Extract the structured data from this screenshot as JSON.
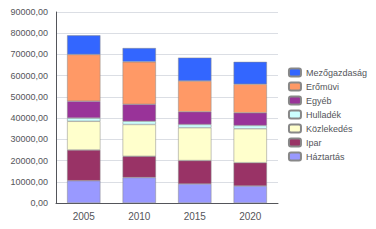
{
  "chart_data": {
    "type": "bar",
    "stacked": true,
    "categories": [
      "2005",
      "2010",
      "2015",
      "2020"
    ],
    "series": [
      {
        "name": "Háztartás",
        "color": "#9999ff",
        "values": [
          10500,
          12000,
          9000,
          8000
        ]
      },
      {
        "name": "Ipar",
        "color": "#993366",
        "values": [
          14500,
          10000,
          11000,
          11000
        ]
      },
      {
        "name": "Közlekedés",
        "color": "#ffffcc",
        "values": [
          13500,
          15000,
          15500,
          16000
        ]
      },
      {
        "name": "Hulladék",
        "color": "#ccffff",
        "values": [
          1500,
          1500,
          1500,
          1500
        ]
      },
      {
        "name": "Egyéb",
        "color": "#993399",
        "values": [
          8000,
          8000,
          6000,
          6000
        ]
      },
      {
        "name": "Erőmüvi",
        "color": "#ff9966",
        "values": [
          22000,
          20000,
          14500,
          13500
        ]
      },
      {
        "name": "Mezőgazdaság",
        "color": "#3366ff",
        "values": [
          9000,
          6500,
          11000,
          10500
        ]
      }
    ],
    "ylim": [
      0,
      90000
    ],
    "yticks": [
      {
        "value": 0,
        "label": "0,00"
      },
      {
        "value": 10000,
        "label": "10000,00"
      },
      {
        "value": 20000,
        "label": "20000,00"
      },
      {
        "value": 30000,
        "label": "30000,00"
      },
      {
        "value": 40000,
        "label": "40000,00"
      },
      {
        "value": 50000,
        "label": "50000,00"
      },
      {
        "value": 60000,
        "label": "60000,00"
      },
      {
        "value": 70000,
        "label": "70000,00"
      },
      {
        "value": 80000,
        "label": "80000,00"
      },
      {
        "value": 90000,
        "label": "90000,00"
      }
    ],
    "grid": true,
    "legend": "right"
  }
}
